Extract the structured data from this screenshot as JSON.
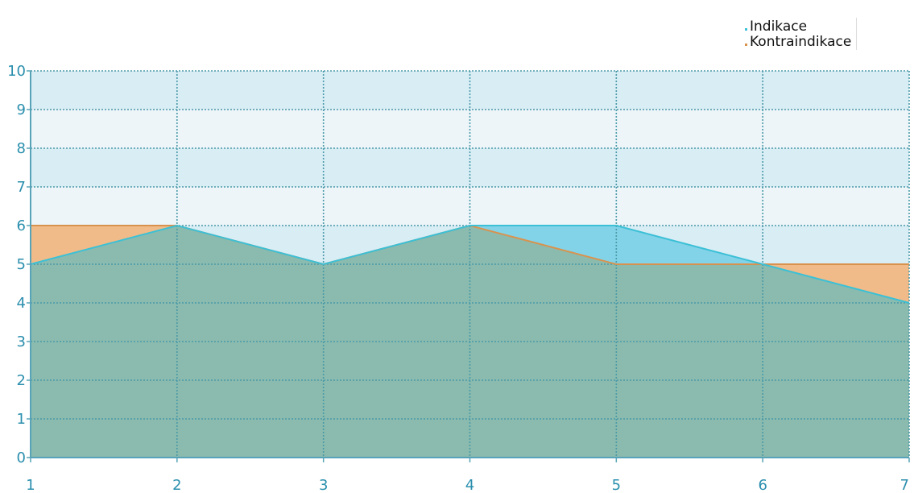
{
  "chart_data": {
    "type": "area",
    "x": [
      1,
      2,
      3,
      4,
      5,
      6,
      7
    ],
    "series": [
      {
        "name": "Indikace",
        "values": [
          5,
          6,
          5,
          6,
          6,
          5,
          4
        ]
      },
      {
        "name": "Kontraindikace",
        "values": [
          6,
          6,
          5,
          6,
          5,
          5,
          5
        ]
      }
    ],
    "xlim": [
      1,
      7
    ],
    "ylim": [
      0,
      10
    ],
    "x_ticks": [
      1,
      2,
      3,
      4,
      5,
      6,
      7
    ],
    "y_ticks": [
      0,
      1,
      2,
      3,
      4,
      5,
      6,
      7,
      8,
      9,
      10
    ],
    "grid": true,
    "legend_position": "top-right"
  },
  "colors": {
    "indikace_fill": "#83d3e8",
    "indikace_line": "#3cc0d6",
    "kontraindikace_fill": "#f0bb88",
    "kontraindikace_line": "#d9924e",
    "overlap_fill": "#8bbbae",
    "band_dark": "#d9edf5",
    "band_light": "#edf5f9",
    "grid": "#4a9aa8",
    "axis": "#58a3b8",
    "tick_text": "#2b8fae"
  }
}
